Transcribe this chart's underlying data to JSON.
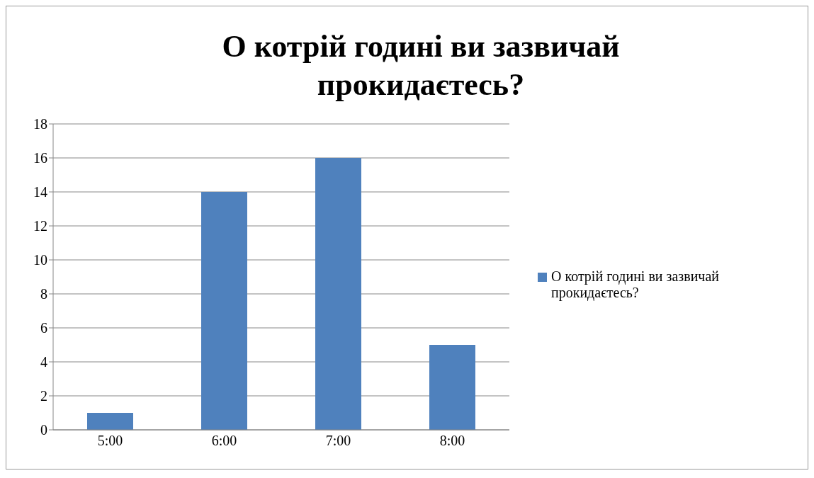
{
  "chart_data": {
    "type": "bar",
    "title": "О котрій годині ви зазвичай прокидаєтесь?",
    "categories": [
      "5:00",
      "6:00",
      "7:00",
      "8:00"
    ],
    "series": [
      {
        "name": "О котрій годині ви зазвичай прокидаєтесь?",
        "color": "#4f81bd",
        "values": [
          1,
          14,
          16,
          5
        ]
      }
    ],
    "ylim": [
      0,
      18
    ],
    "yticks": [
      0,
      2,
      4,
      6,
      8,
      10,
      12,
      14,
      16,
      18
    ],
    "grid": "y",
    "legend": "right"
  }
}
